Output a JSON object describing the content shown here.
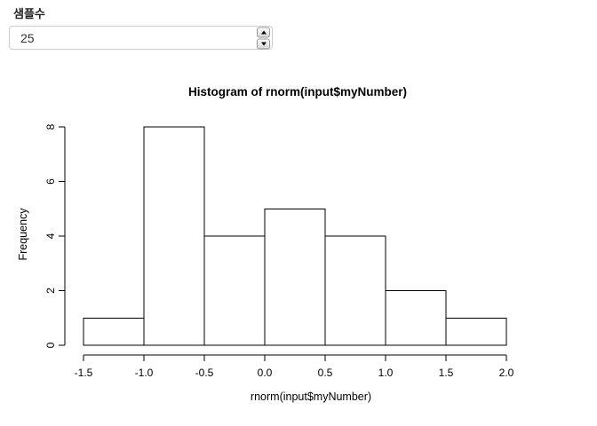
{
  "sample_input": {
    "label": "샘플수",
    "value": "25"
  },
  "icons": {
    "spinner_up": "triangle-up",
    "spinner_down": "triangle-down"
  },
  "chart_data": {
    "type": "bar",
    "subtype": "histogram",
    "title": "Histogram of rnorm(input$myNumber)",
    "xlabel": "rnorm(input$myNumber)",
    "ylabel": "Frequency",
    "bin_edges": [
      -1.5,
      -1.0,
      -0.5,
      0.0,
      0.5,
      1.0,
      1.5,
      2.0
    ],
    "counts": [
      1,
      8,
      4,
      5,
      4,
      2,
      1
    ],
    "x_tick_values": [
      -1.5,
      -1.0,
      -0.5,
      0.0,
      0.5,
      1.0,
      1.5,
      2.0
    ],
    "x_tick_labels": [
      "-1.5",
      "-1.0",
      "-0.5",
      "0.0",
      "0.5",
      "1.0",
      "1.5",
      "2.0"
    ],
    "y_tick_values": [
      0,
      2,
      4,
      6,
      8
    ],
    "y_tick_labels": [
      "0",
      "2",
      "4",
      "6",
      "8"
    ],
    "xlim": [
      -1.5,
      2.0
    ],
    "ylim": [
      0,
      8
    ],
    "grid": false,
    "legend": false,
    "bar_fill": "#ffffff",
    "bar_stroke": "#000000",
    "axis_color": "#000000",
    "text_color": "#000000",
    "background": "#ffffff"
  }
}
